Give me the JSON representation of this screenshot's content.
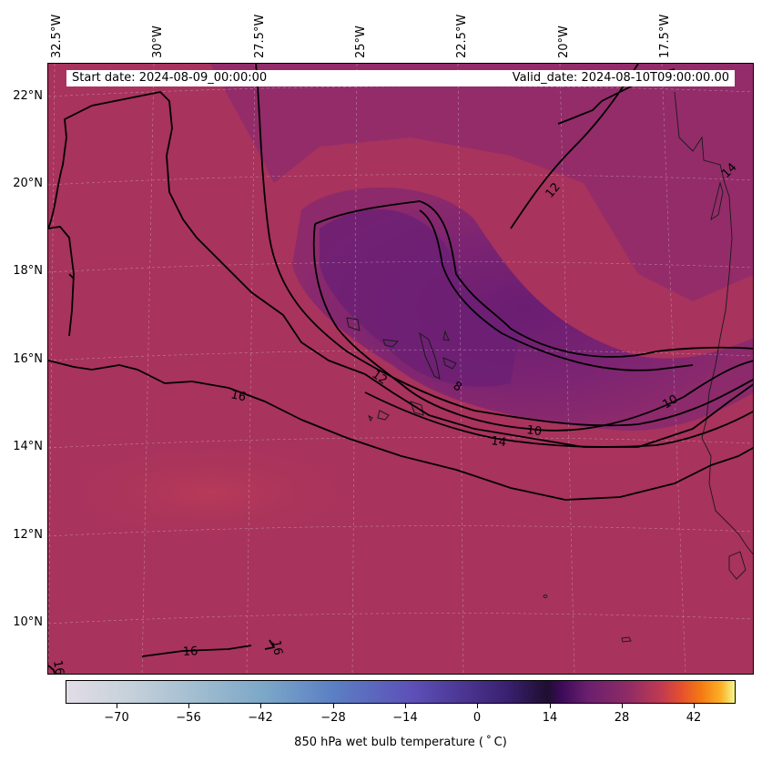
{
  "map": {
    "info": {
      "start_date": "Start date: 2024-08-09_00:00:00",
      "valid_date": "Valid_date: 2024-08-10T09:00:00.00"
    },
    "longitude_labels": [
      "32.5°W",
      "30°W",
      "27.5°W",
      "25°W",
      "22.5°W",
      "20°W",
      "17.5°W"
    ],
    "latitude_labels": [
      "22°N",
      "20°N",
      "18°N",
      "16°N",
      "14°N",
      "12°N",
      "10°N"
    ],
    "contour_labels": [
      "16",
      "12",
      "8",
      "10",
      "14",
      "12",
      "10",
      "14",
      "16",
      "16",
      "16"
    ],
    "colorbar": {
      "title": "850 hPa wet bulb temperature ($^\\circ$C)",
      "title_display": "850 hPa wet bulb temperature ( ˚ C)",
      "ticks": [
        "−70",
        "−56",
        "−42",
        "−28",
        "−14",
        "0",
        "14",
        "28",
        "42"
      ],
      "range": [
        -80,
        48
      ],
      "colormap": "inferno-like diverging"
    },
    "colors": {
      "background_field": "#a8335c",
      "cool_core": "#7b2272",
      "contour_line": "#000000"
    }
  }
}
